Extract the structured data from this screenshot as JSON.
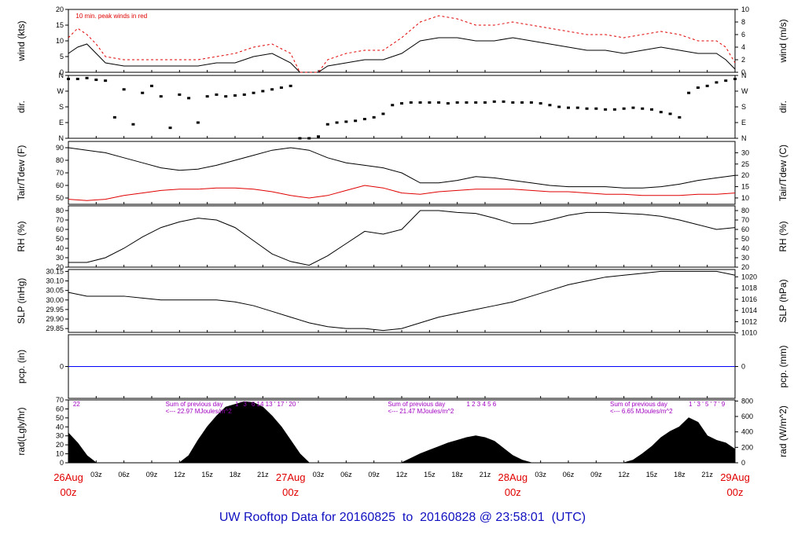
{
  "title": "UW Rooftop Data for 20160825  to  20160828 @ 23:58:01  (UTC)",
  "colors": {
    "primary": "#000000",
    "secondary": "#e00000",
    "precip": "#0000ff",
    "note": "#a000c0",
    "title": "#1010c0",
    "day_label": "#e00000"
  },
  "x_axis": {
    "start_day": "26Aug",
    "end_day": "29Aug",
    "hours_span": 72,
    "day_labels": [
      {
        "hour": 0,
        "top": "26Aug",
        "bottom": "00z"
      },
      {
        "hour": 24,
        "top": "27Aug",
        "bottom": "00z"
      },
      {
        "hour": 48,
        "top": "28Aug",
        "bottom": "00z"
      },
      {
        "hour": 72,
        "top": "29Aug",
        "bottom": "00z"
      }
    ],
    "hour_ticks": [
      {
        "hour": 3,
        "label": "03z"
      },
      {
        "hour": 6,
        "label": "06z"
      },
      {
        "hour": 9,
        "label": "09z"
      },
      {
        "hour": 12,
        "label": "12z"
      },
      {
        "hour": 15,
        "label": "15z"
      },
      {
        "hour": 18,
        "label": "18z"
      },
      {
        "hour": 21,
        "label": "21z"
      },
      {
        "hour": 27,
        "label": "03z"
      },
      {
        "hour": 30,
        "label": "06z"
      },
      {
        "hour": 33,
        "label": "09z"
      },
      {
        "hour": 36,
        "label": "12z"
      },
      {
        "hour": 39,
        "label": "15z"
      },
      {
        "hour": 42,
        "label": "18z"
      },
      {
        "hour": 45,
        "label": "21z"
      },
      {
        "hour": 51,
        "label": "03z"
      },
      {
        "hour": 54,
        "label": "06z"
      },
      {
        "hour": 57,
        "label": "09z"
      },
      {
        "hour": 60,
        "label": "12z"
      },
      {
        "hour": 63,
        "label": "15z"
      },
      {
        "hour": 66,
        "label": "18z"
      },
      {
        "hour": 69,
        "label": "21z"
      }
    ]
  },
  "chart_data": [
    {
      "id": "wind",
      "type": "line",
      "ylabel": "wind (kts)",
      "ylabel_right": "wind (m/s)",
      "ylim": [
        0,
        20
      ],
      "yticks": [
        "0",
        "5",
        "10",
        "15",
        "20"
      ],
      "ylim_right": [
        0,
        10
      ],
      "yticks_right": [
        "0",
        "2",
        "4",
        "6",
        "8",
        "10"
      ],
      "annotation": "10 min. peak winds in red",
      "x": [
        0,
        1,
        2,
        3,
        4,
        6,
        8,
        10,
        12,
        14,
        16,
        18,
        20,
        22,
        24,
        25,
        26,
        27,
        28,
        30,
        32,
        34,
        36,
        38,
        40,
        42,
        44,
        46,
        48,
        50,
        52,
        54,
        56,
        58,
        60,
        62,
        64,
        66,
        68,
        70,
        71,
        72
      ],
      "series": [
        {
          "name": "wind",
          "values": [
            6,
            8,
            9,
            6,
            3,
            2,
            2,
            2,
            2,
            2,
            3,
            3,
            5,
            6,
            3,
            0,
            0,
            0,
            2,
            3,
            4,
            4,
            6,
            10,
            11,
            11,
            10,
            10,
            11,
            10,
            9,
            8,
            7,
            7,
            6,
            7,
            8,
            7,
            6,
            6,
            4,
            1
          ]
        },
        {
          "name": "10 min. peak winds in red",
          "values": [
            11,
            14,
            12,
            9,
            5,
            4,
            4,
            4,
            4,
            4,
            5,
            6,
            8,
            9,
            6,
            0,
            0,
            0,
            4,
            6,
            7,
            7,
            11,
            16,
            18,
            17,
            15,
            15,
            16,
            15,
            14,
            13,
            12,
            12,
            11,
            12,
            13,
            12,
            10,
            10,
            8,
            3
          ]
        }
      ]
    },
    {
      "id": "dir",
      "type": "scatter",
      "ylabel": "dir.",
      "ylabel_right": "dir.",
      "ylim": [
        0,
        360
      ],
      "yticks": [
        "N",
        "E",
        "S",
        "W",
        "N"
      ],
      "yticks_right": [
        "N",
        "E",
        "S",
        "W",
        "N"
      ],
      "x": [
        0,
        1,
        2,
        3,
        4,
        5,
        6,
        7,
        8,
        9,
        10,
        11,
        12,
        13,
        14,
        15,
        16,
        17,
        18,
        19,
        20,
        21,
        22,
        23,
        24,
        25,
        26,
        27,
        28,
        29,
        30,
        31,
        32,
        33,
        34,
        35,
        36,
        37,
        38,
        39,
        40,
        41,
        42,
        43,
        44,
        45,
        46,
        47,
        48,
        49,
        50,
        51,
        52,
        53,
        54,
        55,
        56,
        57,
        58,
        59,
        60,
        61,
        62,
        63,
        64,
        65,
        66,
        67,
        68,
        69,
        70,
        71,
        72
      ],
      "series": [
        {
          "name": "dir",
          "values": [
            340,
            340,
            345,
            335,
            330,
            120,
            280,
            80,
            260,
            300,
            240,
            60,
            250,
            230,
            90,
            240,
            250,
            240,
            245,
            250,
            260,
            270,
            280,
            290,
            300,
            0,
            0,
            10,
            80,
            90,
            95,
            100,
            110,
            120,
            140,
            190,
            200,
            205,
            205,
            205,
            205,
            200,
            205,
            205,
            205,
            205,
            210,
            210,
            205,
            205,
            205,
            200,
            190,
            180,
            175,
            175,
            170,
            170,
            165,
            165,
            170,
            175,
            170,
            165,
            150,
            140,
            120,
            260,
            290,
            300,
            320,
            330,
            340
          ]
        }
      ]
    },
    {
      "id": "temp",
      "type": "line",
      "ylabel": "Tair/Tdew (F)",
      "ylabel_right": "Tair/Tdew (C)",
      "ylim": [
        45,
        95
      ],
      "yticks": [
        "50",
        "60",
        "70",
        "80",
        "90"
      ],
      "ylim_right": [
        7.2,
        35
      ],
      "yticks_right": [
        "10",
        "15",
        "20",
        "25",
        "30"
      ],
      "x": [
        0,
        2,
        4,
        6,
        8,
        10,
        12,
        14,
        16,
        18,
        20,
        22,
        24,
        26,
        28,
        30,
        32,
        34,
        36,
        38,
        40,
        42,
        44,
        46,
        48,
        50,
        52,
        54,
        56,
        58,
        60,
        62,
        64,
        66,
        68,
        70,
        72
      ],
      "series": [
        {
          "name": "Tair",
          "values": [
            90,
            88,
            86,
            82,
            78,
            74,
            72,
            73,
            76,
            80,
            84,
            88,
            90,
            88,
            82,
            78,
            76,
            74,
            70,
            62,
            62,
            64,
            67,
            66,
            64,
            62,
            60,
            59,
            59,
            59,
            58,
            58,
            59,
            61,
            64,
            66,
            68
          ]
        },
        {
          "name": "Tdew",
          "values": [
            49,
            48,
            49,
            52,
            54,
            56,
            57,
            57,
            58,
            58,
            57,
            55,
            52,
            50,
            52,
            56,
            60,
            58,
            54,
            53,
            55,
            56,
            57,
            57,
            57,
            56,
            55,
            55,
            54,
            53,
            53,
            52,
            52,
            52,
            53,
            53,
            54
          ]
        }
      ]
    },
    {
      "id": "rh",
      "type": "line",
      "ylabel": "RH (%)",
      "ylabel_right": "RH (%)",
      "ylim": [
        20,
        85
      ],
      "yticks": [
        "20",
        "30",
        "40",
        "50",
        "60",
        "70",
        "80"
      ],
      "yticks_right": [
        "20",
        "30",
        "40",
        "50",
        "60",
        "70",
        "80"
      ],
      "x": [
        0,
        2,
        4,
        6,
        8,
        10,
        12,
        14,
        16,
        18,
        20,
        22,
        24,
        26,
        28,
        30,
        32,
        34,
        36,
        38,
        40,
        42,
        44,
        46,
        48,
        50,
        52,
        54,
        56,
        58,
        60,
        62,
        64,
        66,
        68,
        70,
        72
      ],
      "series": [
        {
          "name": "RH",
          "values": [
            25,
            25,
            30,
            40,
            52,
            62,
            68,
            72,
            70,
            62,
            48,
            34,
            26,
            22,
            32,
            45,
            58,
            55,
            60,
            80,
            80,
            78,
            77,
            72,
            66,
            66,
            70,
            75,
            78,
            78,
            77,
            76,
            74,
            70,
            65,
            60,
            62
          ]
        }
      ]
    },
    {
      "id": "slp",
      "type": "line",
      "ylabel": "SLP (inHg)",
      "ylabel_right": "SLP (hPa)",
      "ylim": [
        29.83,
        30.16
      ],
      "yticks": [
        "29.85",
        "29.90",
        "29.95",
        "30.00",
        "30.05",
        "30.10",
        "30.15"
      ],
      "ylim_right": [
        1010.1,
        1021.3
      ],
      "yticks_right": [
        "1010",
        "1012",
        "1014",
        "1016",
        "1018",
        "1020"
      ],
      "x": [
        0,
        2,
        4,
        6,
        8,
        10,
        12,
        14,
        16,
        18,
        20,
        22,
        24,
        26,
        28,
        30,
        32,
        34,
        36,
        38,
        40,
        42,
        44,
        46,
        48,
        50,
        52,
        54,
        56,
        58,
        60,
        62,
        64,
        66,
        68,
        70,
        72
      ],
      "series": [
        {
          "name": "SLP",
          "values": [
            30.04,
            30.02,
            30.02,
            30.02,
            30.01,
            30.0,
            30.0,
            30.0,
            30.0,
            29.99,
            29.97,
            29.94,
            29.91,
            29.88,
            29.86,
            29.85,
            29.85,
            29.84,
            29.85,
            29.88,
            29.91,
            29.93,
            29.95,
            29.97,
            29.99,
            30.02,
            30.05,
            30.08,
            30.1,
            30.12,
            30.13,
            30.14,
            30.15,
            30.15,
            30.15,
            30.15,
            30.13
          ]
        }
      ]
    },
    {
      "id": "pcp",
      "type": "line",
      "ylabel": "pcp. (in)",
      "ylabel_right": "pcp. (mm)",
      "ylim": [
        -1,
        1
      ],
      "yticks": [
        "0"
      ],
      "yticks_right": [
        "0"
      ],
      "x": [
        0,
        72
      ],
      "series": [
        {
          "name": "pcp",
          "values": [
            0,
            0
          ]
        }
      ]
    },
    {
      "id": "rad",
      "type": "area",
      "ylabel": "rad(Lgly/hr)",
      "ylabel_right": "rad (W/m^2)",
      "ylim": [
        0,
        70
      ],
      "yticks": [
        "0",
        "10",
        "20",
        "30",
        "40",
        "50",
        "60",
        "70"
      ],
      "ylim_right": [
        0,
        814
      ],
      "yticks_right": [
        "0",
        "200",
        "400",
        "600",
        "800"
      ],
      "x": [
        0,
        1,
        2,
        3,
        12,
        13,
        14,
        15,
        16,
        17,
        18,
        19,
        20,
        21,
        22,
        23,
        24,
        25,
        26,
        36,
        37,
        38,
        39,
        40,
        41,
        42,
        43,
        44,
        45,
        46,
        47,
        48,
        49,
        50,
        60,
        61,
        62,
        63,
        64,
        65,
        66,
        67,
        68,
        69,
        70,
        71,
        72
      ],
      "series": [
        {
          "name": "rad",
          "values": [
            33,
            22,
            8,
            0,
            0,
            8,
            25,
            40,
            52,
            62,
            65,
            68,
            67,
            62,
            52,
            40,
            25,
            10,
            0,
            0,
            5,
            10,
            14,
            18,
            22,
            25,
            28,
            30,
            28,
            24,
            16,
            8,
            3,
            0,
            0,
            3,
            10,
            18,
            28,
            35,
            40,
            50,
            45,
            30,
            25,
            22,
            15
          ]
        }
      ],
      "notes": [
        {
          "hour": 0.5,
          "text": "22"
        },
        {
          "hour": 10.5,
          "text": "Sum of previous day"
        },
        {
          "hour": 10.5,
          "text": "<--- 22.97 MJoules/m^2"
        },
        {
          "hour": 34.5,
          "text": "Sum of previous day"
        },
        {
          "hour": 34.5,
          "text": "<--- 21.47 MJoules/m^2"
        },
        {
          "hour": 58.5,
          "text": "Sum of previous day"
        },
        {
          "hour": 58.5,
          "text": "<--- 6.65 MJoules/m^2"
        },
        {
          "hour": 18,
          "text": "1 ' 3 ' 6 14 13 ' 17 ' 20 '"
        },
        {
          "hour": 43,
          "text": "1   2   3   4   5   6"
        },
        {
          "hour": 67,
          "text": "1 ' 3 ' 5 ' 7 '  9"
        }
      ]
    }
  ]
}
